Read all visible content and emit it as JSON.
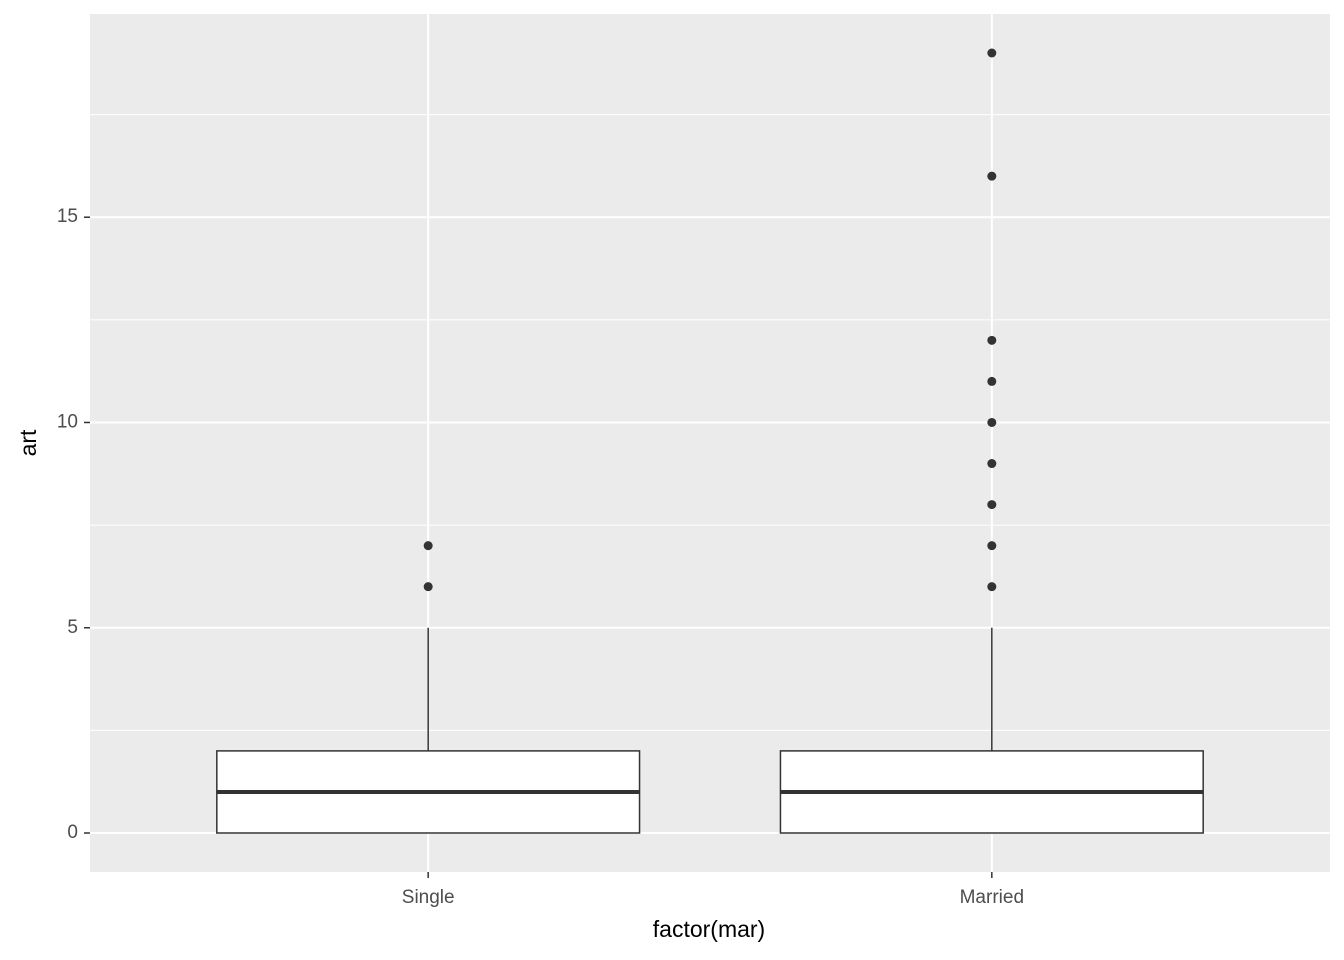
{
  "chart_data": {
    "type": "boxplot",
    "x_label": "factor(mar)",
    "y_label": "art",
    "categories": [
      "Single",
      "Married"
    ],
    "boxes": [
      {
        "min": 0,
        "q1": 0,
        "median": 1,
        "q3": 2,
        "max": 5,
        "outliers": [
          6,
          7
        ]
      },
      {
        "min": 0,
        "q1": 0,
        "median": 1,
        "q3": 2,
        "max": 5,
        "outliers": [
          6,
          7,
          8,
          9,
          10,
          11,
          12,
          16,
          19
        ]
      }
    ],
    "box_fill": "#ffffff",
    "box_stroke": "#333333",
    "outlier_color": "#333333",
    "panel_color": "#ebebeb",
    "ylim": [
      -0.95,
      19.95
    ],
    "yticks": [
      0,
      5,
      10,
      15
    ],
    "y_minor_ticks": [
      2.5,
      7.5,
      12.5,
      17.5
    ],
    "grid": true
  }
}
